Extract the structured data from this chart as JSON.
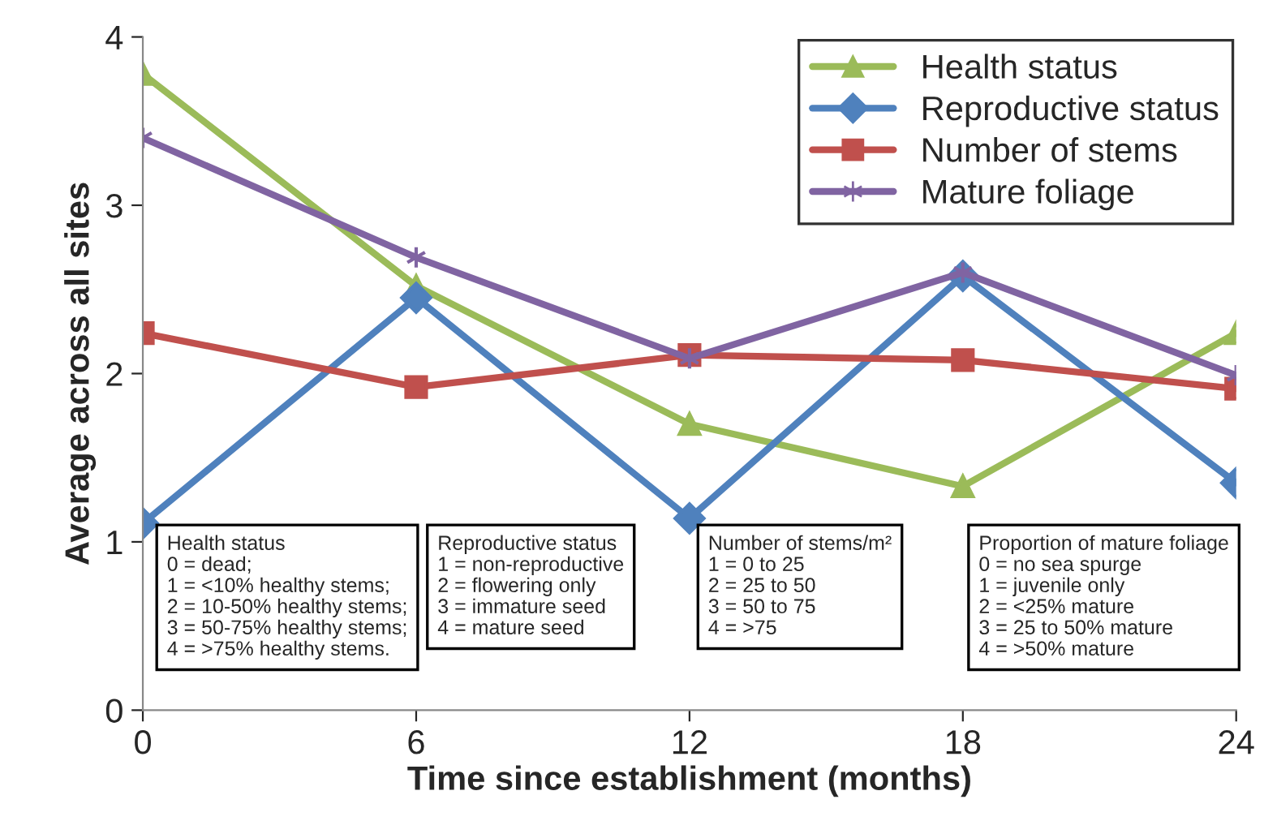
{
  "chart_data": {
    "type": "line",
    "xlabel": "Time since establishment (months)",
    "ylabel": "Average across all sites",
    "x": [
      0,
      6,
      12,
      18,
      24
    ],
    "series": [
      {
        "name": "Health status",
        "color": "#9bbb59",
        "marker": "triangle",
        "values": [
          3.78,
          2.52,
          1.7,
          1.33,
          2.24
        ]
      },
      {
        "name": "Reproductive status",
        "color": "#4f81bd",
        "marker": "diamond",
        "values": [
          1.11,
          2.45,
          1.14,
          2.58,
          1.35
        ]
      },
      {
        "name": "Number of stems",
        "color": "#c0504d",
        "marker": "square",
        "values": [
          2.24,
          1.92,
          2.11,
          2.08,
          1.91
        ]
      },
      {
        "name": "Mature foliage",
        "color": "#8064a2",
        "marker": "cross",
        "values": [
          3.4,
          2.69,
          2.09,
          2.6,
          1.99
        ]
      }
    ],
    "xlim": [
      0,
      24
    ],
    "xticks": [
      0,
      6,
      12,
      18,
      24
    ],
    "ylim": [
      0,
      4
    ],
    "yticks": [
      0,
      1,
      2,
      3,
      4
    ],
    "grid": false,
    "legend": "top right",
    "line_style": "solid",
    "annotations": [
      "Health status\n0 = dead;\n1 = <10% healthy stems;\n2 = 10-50% healthy stems;\n3 = 50-75% healthy stems;\n4 = >75% healthy stems.",
      "Reproductive status\n1 = non-reproductive\n2 = flowering only\n3 = immature seed\n4 = mature seed",
      "Number of stems/m²\n1 = 0 to 25\n2 = 25 to 50\n3 = 50 to 75\n4 = >75",
      "Proportion of mature foliage\n0 = no sea spurge\n1 = juvenile only\n2 = <25% mature\n3 = 25 to 50% mature\n4 = >50% mature"
    ]
  }
}
